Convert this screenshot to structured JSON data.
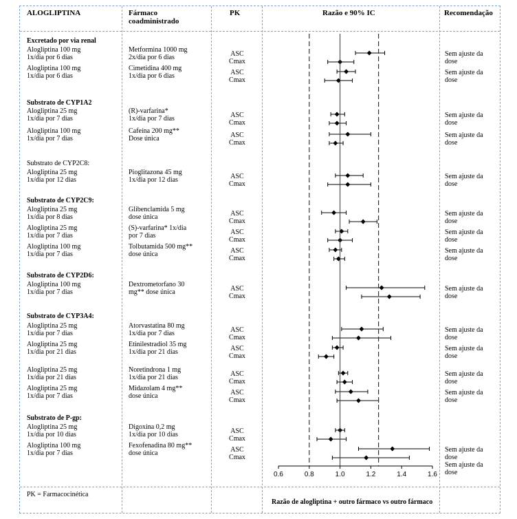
{
  "headers": {
    "col1": "ALOGLIPTINA",
    "col2_line1": "Fármaco",
    "col2_line2": "coadministrado",
    "col3": "PK",
    "col4": "Razão e 90% IC",
    "col5": "Recomendação"
  },
  "groups": [
    {
      "title": "Excretado por via renal",
      "bold": true,
      "rows": [
        {
          "c1": [
            "Alogliptina 100 mg",
            "1x/dia por 6 dias"
          ],
          "c2": [
            "Metformina 1000 mg",
            "2x/dia por 6 dias"
          ],
          "auc": [
            1.19,
            1.1,
            1.29
          ],
          "cmax": [
            1.0,
            0.92,
            1.09
          ],
          "rec": [
            "Sem ajuste da",
            "dose"
          ]
        },
        {
          "c1": [
            "Alogliptina 100 mg",
            "1x/dia por 6 dias"
          ],
          "c2": [
            "Cimetidina 400 mg",
            "1x/dia por 6 dias"
          ],
          "auc": [
            1.04,
            0.98,
            1.1
          ],
          "cmax": [
            0.99,
            0.9,
            1.08
          ],
          "rec": [
            "Sem ajuste da",
            "dose"
          ]
        }
      ]
    },
    {
      "title": "Substrato de CYP1A2",
      "bold": true,
      "rows": [
        {
          "c1": [
            "Alogliptina 25 mg",
            "1x/dia por 7 dias"
          ],
          "c2": [
            "(R)-varfarina*",
            "1x/dia por 7 dias"
          ],
          "auc": [
            0.98,
            0.94,
            1.03
          ],
          "cmax": [
            0.98,
            0.93,
            1.04
          ],
          "rec": [
            "Sem ajuste da",
            "dose"
          ]
        },
        {
          "c1": [
            "Alogliptina 100 mg",
            "1x/dia por 7 dias"
          ],
          "c2": [
            "Cafeína 200 mg**",
            "Dose única"
          ],
          "auc": [
            1.05,
            0.93,
            1.2
          ],
          "cmax": [
            0.97,
            0.93,
            1.02
          ],
          "rec": [
            "Sem ajuste da",
            "dose"
          ]
        }
      ]
    },
    {
      "title": "Substrato de CYP2C8:",
      "bold": false,
      "rows": [
        {
          "c1": [
            "Alogliptina 25 mg",
            "1x/dia por 12 dias"
          ],
          "c2": [
            "Pioglitazona 45 mg",
            "1x/dia por 12 dias"
          ],
          "auc": [
            1.05,
            0.97,
            1.15
          ],
          "cmax": [
            1.05,
            0.92,
            1.2
          ],
          "rec": [
            "Sem ajuste da",
            "dose"
          ]
        }
      ]
    },
    {
      "title": "Substrato de CYP2C9:",
      "bold": true,
      "rows": [
        {
          "c1": [
            "Alogliptina 25 mg",
            "1x/dia por 8 dias"
          ],
          "c2": [
            "Glibenclamida 5 mg",
            "dose única"
          ],
          "auc": [
            0.96,
            0.88,
            1.04
          ],
          "cmax": [
            1.15,
            1.06,
            1.24
          ],
          "rec": [
            "Sem ajuste da",
            "dose"
          ]
        },
        {
          "c1": [
            "Alogliptina 25 mg",
            "1x/dia por 7 dias"
          ],
          "c2": [
            "(S)-varfarina* 1x/dia",
            "por 7 dias"
          ],
          "auc": [
            1.01,
            0.97,
            1.05
          ],
          "cmax": [
            1.0,
            0.92,
            1.08
          ],
          "rec": [
            "Sem ajuste da",
            "dose"
          ]
        },
        {
          "c1": [
            "Alogliptina 100 mg",
            "1x/dia por 7 dias"
          ],
          "c2": [
            "Tolbutamida 500 mg**",
            "dose única"
          ],
          "auc": [
            0.97,
            0.93,
            1.01
          ],
          "cmax": [
            0.99,
            0.96,
            1.03
          ],
          "rec": [
            "Sem ajuste da",
            "dose"
          ]
        }
      ]
    },
    {
      "title": "Substrato de CYP2D6:",
      "bold": true,
      "rows": [
        {
          "c1": [
            "Alogliptina 100 mg",
            "1x/dia por 7 dias"
          ],
          "c2": [
            "Dextrometorfano 30",
            "mg** dose única"
          ],
          "auc": [
            1.27,
            1.04,
            1.55
          ],
          "cmax": [
            1.32,
            1.14,
            1.52
          ],
          "rec": [
            "Sem ajuste da",
            "dose"
          ]
        }
      ]
    },
    {
      "title": "Substrato de CYP3A4:",
      "bold": true,
      "rows": [
        {
          "c1": [
            "Alogliptina 25 mg",
            "1x/dia por 7 dias"
          ],
          "c2": [
            "Atorvastatina 80 mg",
            "1x/dia por 7 dias"
          ],
          "auc": [
            1.14,
            1.01,
            1.28
          ],
          "cmax": [
            1.12,
            0.95,
            1.33
          ],
          "rec": [
            "Sem ajuste da",
            "dose"
          ]
        },
        {
          "c1": [
            "Alogliptina 25 mg",
            "1x/dia por 21 dias"
          ],
          "c2": [
            "Etinilestradiol 35 mg",
            "1x/dia por 21 dias"
          ],
          "auc": [
            0.98,
            0.95,
            1.02
          ],
          "cmax": [
            0.91,
            0.86,
            0.96
          ],
          "rec": [
            "Sem ajuste da",
            "dose"
          ]
        },
        {
          "c1": [
            "Alogliptina 25 mg",
            "1x/dia por 21 dias"
          ],
          "c2": [
            "Noretindrona 1 mg",
            "1x/dia por 21 dias"
          ],
          "auc": [
            1.02,
            0.99,
            1.05
          ],
          "cmax": [
            1.03,
            0.98,
            1.08
          ],
          "rec": [
            "Sem ajuste da",
            "dose"
          ]
        },
        {
          "c1": [
            "Alogliptina 25 mg",
            "1x/dia por 7 dias"
          ],
          "c2": [
            "Midazolam 4 mg**",
            "dose única"
          ],
          "auc": [
            1.07,
            0.97,
            1.18
          ],
          "cmax": [
            1.12,
            0.98,
            1.25
          ],
          "rec": [
            "Sem ajuste da",
            "dose"
          ]
        }
      ]
    },
    {
      "title": "Substrato de P-gp:",
      "bold": true,
      "rows": [
        {
          "c1": [
            "Alogliptina 25 mg",
            "1x/dia por 10 dias"
          ],
          "c2": [
            "Digoxina 0,2 mg",
            "1x/dia por 10 dias"
          ],
          "auc": [
            1.0,
            0.97,
            1.03
          ],
          "cmax": [
            0.94,
            0.85,
            1.04
          ],
          "rec": [
            "",
            ""
          ]
        },
        {
          "c1": [
            "Alogliptina 100 mg",
            "1x/dia por 7 dias"
          ],
          "c2": [
            "Fexofenadina 80 mg**",
            "dose única"
          ],
          "auc": [
            1.34,
            1.12,
            1.58
          ],
          "cmax": [
            1.17,
            0.95,
            1.45
          ],
          "rec": [
            "Sem ajuste da",
            "dose",
            "Sem ajuste da",
            "dose"
          ]
        }
      ]
    }
  ],
  "pk_labels": {
    "auc": "ASC",
    "cmax": "Cmax"
  },
  "chart_data": {
    "type": "forest",
    "xlim": [
      0.6,
      1.6
    ],
    "xticks": [
      "0.6",
      "0.8",
      "1.0",
      "1.2",
      "1.4",
      "1.6"
    ],
    "reference_lines": [
      0.8,
      1.0,
      1.25
    ],
    "xlabel": "Razão de alogliptina + outro fármaco vs outro fármaco"
  },
  "footer": {
    "note": "PK = Farmacocinética",
    "axis_caption": "Razão de alogliptina + outro fármaco vs outro fármaco"
  }
}
